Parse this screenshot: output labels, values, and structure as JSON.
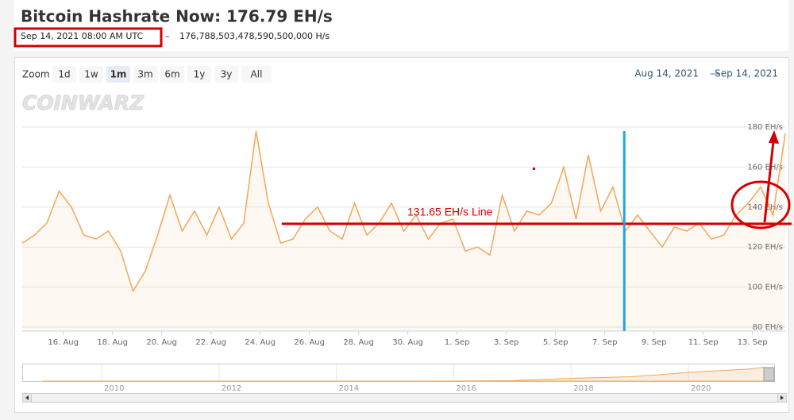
{
  "header": {
    "title": "Bitcoin Hashrate Now: 176.79 EH/s",
    "timestamp": "Sep 14, 2021 08:00 AM UTC",
    "separator": "–",
    "hashrate_hs": "176,788,503,478,590,500,000 H/s"
  },
  "zoom": {
    "label": "Zoom",
    "buttons": [
      "1d",
      "1w",
      "1m",
      "3m",
      "6m",
      "1y",
      "3y",
      "All"
    ],
    "selected": "1m"
  },
  "range": {
    "from": "Aug 14, 2021",
    "separator": "—",
    "to": "Sep 14, 2021"
  },
  "logo": "COINWARZ",
  "chart_data": {
    "type": "line",
    "color": "#f2a65a",
    "grid": true,
    "x": [
      "2021-08-14 08:00",
      "2021-08-14 20:00",
      "2021-08-15 08:00",
      "2021-08-15 20:00",
      "2021-08-16 08:00",
      "2021-08-16 20:00",
      "2021-08-17 08:00",
      "2021-08-17 20:00",
      "2021-08-18 08:00",
      "2021-08-18 20:00",
      "2021-08-19 08:00",
      "2021-08-19 20:00",
      "2021-08-20 08:00",
      "2021-08-20 20:00",
      "2021-08-21 08:00",
      "2021-08-21 20:00",
      "2021-08-22 08:00",
      "2021-08-22 20:00",
      "2021-08-23 08:00",
      "2021-08-23 20:00",
      "2021-08-24 08:00",
      "2021-08-24 20:00",
      "2021-08-25 08:00",
      "2021-08-25 20:00",
      "2021-08-26 08:00",
      "2021-08-26 20:00",
      "2021-08-27 08:00",
      "2021-08-27 20:00",
      "2021-08-28 08:00",
      "2021-08-28 20:00",
      "2021-08-29 08:00",
      "2021-08-29 20:00",
      "2021-08-30 08:00",
      "2021-08-30 20:00",
      "2021-08-31 08:00",
      "2021-08-31 20:00",
      "2021-09-01 08:00",
      "2021-09-01 20:00",
      "2021-09-02 08:00",
      "2021-09-02 20:00",
      "2021-09-03 08:00",
      "2021-09-03 20:00",
      "2021-09-04 08:00",
      "2021-09-04 20:00",
      "2021-09-05 08:00",
      "2021-09-05 20:00",
      "2021-09-06 08:00",
      "2021-09-06 20:00",
      "2021-09-07 08:00",
      "2021-09-07 20:00",
      "2021-09-08 08:00",
      "2021-09-08 20:00",
      "2021-09-09 08:00",
      "2021-09-09 20:00",
      "2021-09-10 08:00",
      "2021-09-10 20:00",
      "2021-09-11 08:00",
      "2021-09-11 20:00",
      "2021-09-12 08:00",
      "2021-09-12 20:00",
      "2021-09-13 08:00",
      "2021-09-13 20:00",
      "2021-09-14 08:00"
    ],
    "values": [
      122,
      126,
      132,
      148,
      140,
      126,
      124,
      128,
      118,
      98,
      108,
      126,
      146,
      128,
      138,
      126,
      140,
      124,
      132,
      178,
      142,
      122,
      124,
      134,
      140,
      128,
      124,
      142,
      126,
      132,
      142,
      128,
      136,
      124,
      132,
      134,
      118,
      120,
      116,
      146,
      128,
      138,
      136,
      142,
      160,
      134,
      166,
      138,
      150,
      128,
      136,
      128,
      120,
      130,
      128,
      132,
      124,
      126,
      136,
      142,
      150,
      136,
      176.79
    ],
    "xlim": [
      "2021-08-14 08:00",
      "2021-09-14 08:00"
    ],
    "ylim": [
      78,
      182
    ],
    "yticks": [
      {
        "value": 80,
        "label": "80 EH/s"
      },
      {
        "value": 100,
        "label": "100 EH/s"
      },
      {
        "value": 120,
        "label": "120 EH/s"
      },
      {
        "value": 140,
        "label": "140 EH/s"
      },
      {
        "value": 160,
        "label": "160 EH/s"
      },
      {
        "value": 180,
        "label": "180 EH/s"
      }
    ],
    "xticks": [
      {
        "value": "2021-08-16 00:00",
        "label": "16. Aug"
      },
      {
        "value": "2021-08-18 00:00",
        "label": "18. Aug"
      },
      {
        "value": "2021-08-20 00:00",
        "label": "20. Aug"
      },
      {
        "value": "2021-08-22 00:00",
        "label": "22. Aug"
      },
      {
        "value": "2021-08-24 00:00",
        "label": "24. Aug"
      },
      {
        "value": "2021-08-26 00:00",
        "label": "26. Aug"
      },
      {
        "value": "2021-08-28 00:00",
        "label": "28. Aug"
      },
      {
        "value": "2021-08-30 00:00",
        "label": "30. Aug"
      },
      {
        "value": "2021-09-01 00:00",
        "label": "1. Sep"
      },
      {
        "value": "2021-09-03 00:00",
        "label": "3. Sep"
      },
      {
        "value": "2021-09-05 00:00",
        "label": "5. Sep"
      },
      {
        "value": "2021-09-07 00:00",
        "label": "7. Sep"
      },
      {
        "value": "2021-09-09 00:00",
        "label": "9. Sep"
      },
      {
        "value": "2021-09-11 00:00",
        "label": "11. Sep"
      },
      {
        "value": "2021-09-13 00:00",
        "label": "13. Sep"
      }
    ],
    "hline": {
      "value": 131.65,
      "label": "131.65 EH/s Line",
      "x_start": "2021-08-24 21:00",
      "color": "#d40000"
    },
    "vline": {
      "x": "2021-09-07 19:00",
      "color": "#1ea7e0"
    },
    "navigator": {
      "x": [
        2009,
        2014,
        2016,
        2017,
        2018,
        2019,
        2019.5,
        2020,
        2020.5,
        2021,
        2021.3,
        2021.38,
        2021.46
      ],
      "values": [
        0,
        0.3,
        1.5,
        6,
        35,
        55,
        80,
        110,
        130,
        150,
        175,
        100,
        150
      ],
      "xlim": [
        2008.66,
        2021.46
      ],
      "ylim": [
        0,
        200
      ],
      "xticks": [
        2010,
        2012,
        2014,
        2016,
        2018,
        2020
      ]
    }
  }
}
